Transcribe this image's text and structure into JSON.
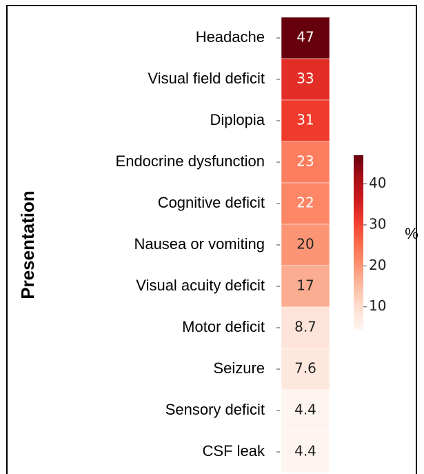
{
  "chart_data": {
    "type": "heatmap",
    "ylabel": "Presentation",
    "categories": [
      "Headache",
      "Visual field deficit",
      "Diplopia",
      "Endocrine dysfunction",
      "Cognitive deficit",
      "Nausea or vomiting",
      "Visual acuity deficit",
      "Motor deficit",
      "Seizure",
      "Sensory deficit",
      "CSF leak"
    ],
    "values": [
      47,
      33,
      31,
      23,
      22,
      20,
      17,
      8.7,
      7.6,
      4.4,
      4.4
    ],
    "colormap": "Reds",
    "clim": [
      4.4,
      47
    ],
    "colorbar": {
      "label": "%",
      "ticks": [
        10,
        20,
        30,
        40
      ]
    }
  }
}
